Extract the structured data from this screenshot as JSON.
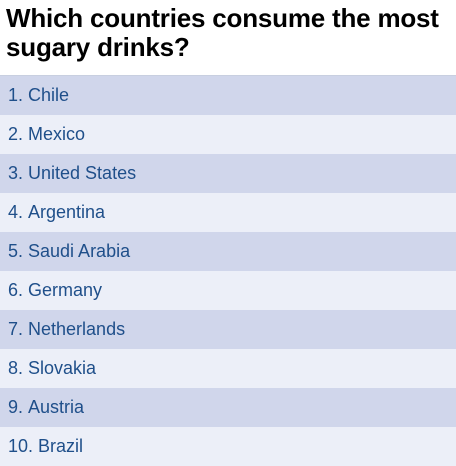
{
  "title": "Which countries consume the most sugary drinks?",
  "colors": {
    "row_dark": "#d0d6eb",
    "row_light": "#eceff8",
    "text": "#1f4f8a"
  },
  "chart_data": {
    "type": "table",
    "title": "Which countries consume the most sugary drinks?",
    "rows": [
      {
        "rank": "1.",
        "country": "Chile"
      },
      {
        "rank": "2.",
        "country": "Mexico"
      },
      {
        "rank": "3.",
        "country": "United States"
      },
      {
        "rank": "4.",
        "country": "Argentina"
      },
      {
        "rank": "5.",
        "country": "Saudi Arabia"
      },
      {
        "rank": "6.",
        "country": "Germany"
      },
      {
        "rank": "7.",
        "country": "Netherlands"
      },
      {
        "rank": "8.",
        "country": "Slovakia"
      },
      {
        "rank": "9.",
        "country": "Austria"
      },
      {
        "rank": "10.",
        "country": "Brazil"
      }
    ]
  }
}
